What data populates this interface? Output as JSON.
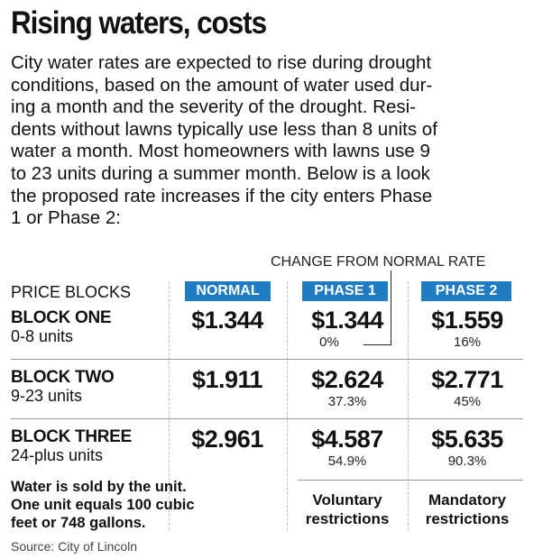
{
  "title": "Rising waters, costs",
  "intro_lines": [
    "City water rates are expected to rise during drought",
    "conditions, based on the amount of water used dur-",
    "ing a month and the severity of the drought. Resi-",
    "dents without lawns typically use less than 8 units of",
    "water a month. Most homeowners with lawns use 9",
    "to 23 units during a summer month. Below is a look",
    "the proposed rate increases if the city enters Phase",
    "1 or Phase 2:"
  ],
  "change_label": "CHANGE FROM NORMAL RATE",
  "price_blocks_label": "PRICE BLOCKS",
  "columns": [
    "NORMAL",
    "PHASE 1",
    "PHASE 2"
  ],
  "header_color": "#1f7cc2",
  "rows": [
    {
      "name": "BLOCK ONE",
      "range": "0-8 units",
      "normal": "$1.344",
      "phase1": "$1.344",
      "phase1_change": "0%",
      "phase2": "$1.559",
      "phase2_change": "16%"
    },
    {
      "name": "BLOCK TWO",
      "range": "9-23 units",
      "normal": "$1.911",
      "phase1": "$2.624",
      "phase1_change": "37.3%",
      "phase2": "$2.771",
      "phase2_change": "45%"
    },
    {
      "name": "BLOCK THREE",
      "range": "24-plus units",
      "normal": "$2.961",
      "phase1": "$4.587",
      "phase1_change": "54.9%",
      "phase2": "$5.635",
      "phase2_change": "90.3%"
    }
  ],
  "note_lines": [
    "Water is sold by the unit.",
    "One unit equals 100 cubic",
    "feet or 748 gallons."
  ],
  "phase1_footer": [
    "Voluntary",
    "restrictions"
  ],
  "phase2_footer": [
    "Mandatory",
    "restrictions"
  ],
  "source": "Source: City of Lincoln"
}
